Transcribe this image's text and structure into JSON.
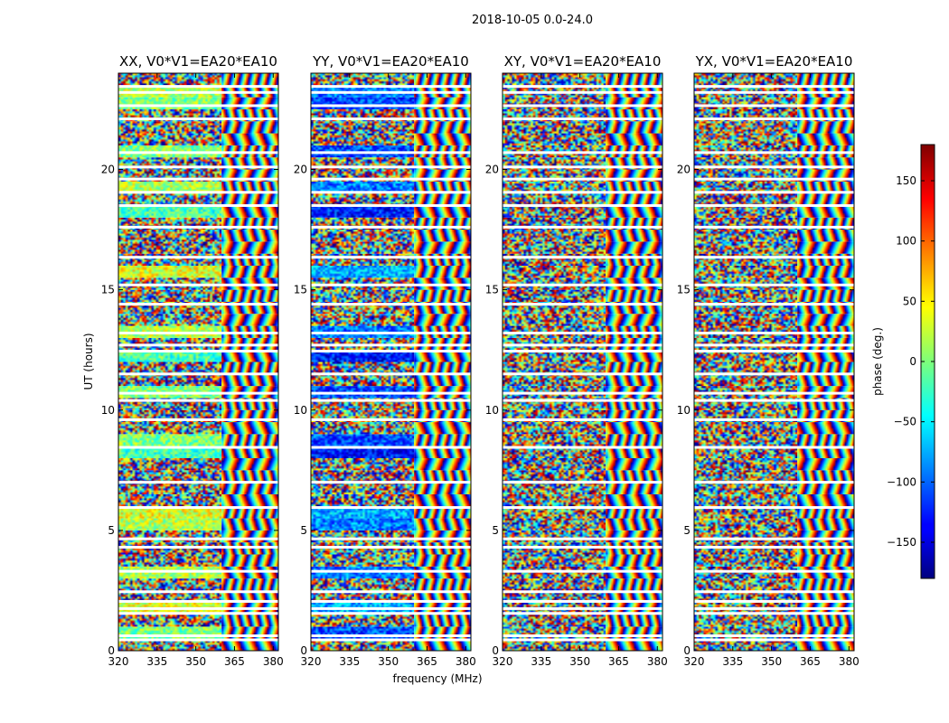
{
  "figure": {
    "title": "2018-10-05 0.0-24.0"
  },
  "chart_data": {
    "type": "heatmap",
    "title": "2018-10-05 0.0-24.0",
    "xlabel": "frequency (MHz)",
    "ylabel": "UT (hours)",
    "xlim": [
      320,
      382
    ],
    "ylim": [
      0,
      24
    ],
    "xticks": [
      320,
      335,
      350,
      365,
      380
    ],
    "yticks": [
      0,
      5,
      10,
      15,
      20
    ],
    "panels": [
      {
        "title": "XX, V0*V1=EA20*EA10",
        "polarization": "XX"
      },
      {
        "title": "YY, V0*V1=EA20*EA10",
        "polarization": "YY"
      },
      {
        "title": "XY, V0*V1=EA20*EA10",
        "polarization": "XY"
      },
      {
        "title": "YX, V0*V1=EA20*EA10",
        "polarization": "YX"
      }
    ],
    "colorbar": {
      "label": "phase (deg.)",
      "range": [
        -180,
        180
      ],
      "ticks": [
        -150,
        -100,
        -50,
        0,
        50,
        100,
        150
      ],
      "colormap": "jet"
    },
    "flagged_gaps_hours": [
      0.45,
      0.62,
      1.55,
      1.75,
      2.05,
      2.45,
      3.3,
      4.3,
      4.65,
      5.95,
      7.0,
      8.45,
      9.6,
      10.4,
      10.7,
      11.5,
      12.45,
      12.7,
      13.2,
      14.4,
      15.2,
      16.35,
      17.6,
      18.5,
      19.05,
      19.6,
      20.1,
      20.7,
      22.1,
      22.65,
      23.2,
      23.45
    ]
  }
}
